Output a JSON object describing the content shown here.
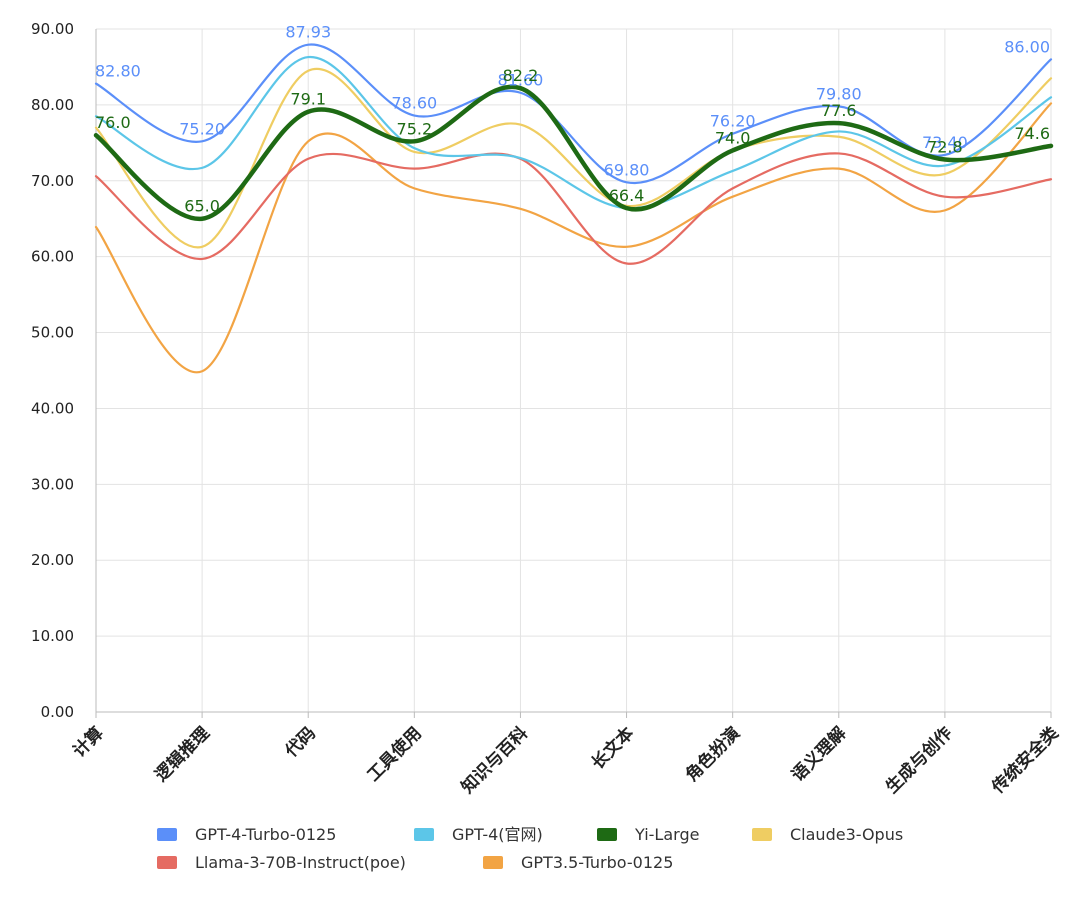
{
  "chart_data": {
    "type": "line",
    "categories": [
      "计算",
      "逻辑推理",
      "代码",
      "工具使用",
      "知识与百科",
      "长文本",
      "角色扮演",
      "语义理解",
      "生成与创作",
      "传统安全类"
    ],
    "ylim": [
      0,
      90
    ],
    "yticks": [
      "0.00",
      "10.00",
      "20.00",
      "30.00",
      "40.00",
      "50.00",
      "60.00",
      "70.00",
      "80.00",
      "90.00"
    ],
    "yticks_values": [
      0,
      10,
      20,
      30,
      40,
      50,
      60,
      70,
      80,
      90
    ],
    "grid": true,
    "legend_position": "bottom",
    "series": [
      {
        "name": "GPT3.5-Turbo-0125",
        "color": "#F2A444",
        "values": [
          63.9,
          44.9,
          75.2,
          69.0,
          66.3,
          61.3,
          67.9,
          71.6,
          66.1,
          80.2
        ],
        "labels": null
      },
      {
        "name": "Llama-3-70B-Instruct(poe)",
        "color": "#E56B62",
        "values": [
          70.6,
          59.7,
          72.9,
          71.6,
          72.9,
          59.1,
          69.0,
          73.6,
          67.9,
          70.2
        ],
        "labels": null
      },
      {
        "name": "Claude3-Opus",
        "color": "#EFCD62",
        "values": [
          77.0,
          61.3,
          84.5,
          73.8,
          77.4,
          66.7,
          74.0,
          75.8,
          70.9,
          83.5
        ],
        "labels": null
      },
      {
        "name": "GPT-4(官网)",
        "color": "#5CC6E8",
        "values": [
          78.5,
          71.7,
          86.3,
          74.3,
          73.0,
          66.4,
          71.3,
          76.5,
          72.0,
          81.0
        ],
        "labels": null
      },
      {
        "name": "GPT-4-Turbo-0125",
        "color": "#5B8FF9",
        "values": [
          82.8,
          75.2,
          87.93,
          78.6,
          81.6,
          69.8,
          76.2,
          79.8,
          73.4,
          86.0
        ],
        "labels": [
          "82.80",
          "75.20",
          "87.93",
          "78.60",
          "81.60",
          "69.80",
          "76.20",
          "79.80",
          "73.40",
          "86.00"
        ]
      },
      {
        "name": "Yi-Large",
        "color": "#1E6A14",
        "values": [
          76.0,
          65.0,
          79.1,
          75.2,
          82.2,
          66.4,
          74.0,
          77.6,
          72.8,
          74.6
        ],
        "labels": [
          "76.0",
          "65.0",
          "79.1",
          "75.2",
          "82.2",
          "66.4",
          "74.0",
          "77.6",
          "72.8",
          "74.6"
        ]
      }
    ],
    "legend_order": [
      "GPT-4-Turbo-0125",
      "GPT-4(官网)",
      "Yi-Large",
      "Claude3-Opus",
      "Llama-3-70B-Instruct(poe)",
      "GPT3.5-Turbo-0125"
    ]
  }
}
